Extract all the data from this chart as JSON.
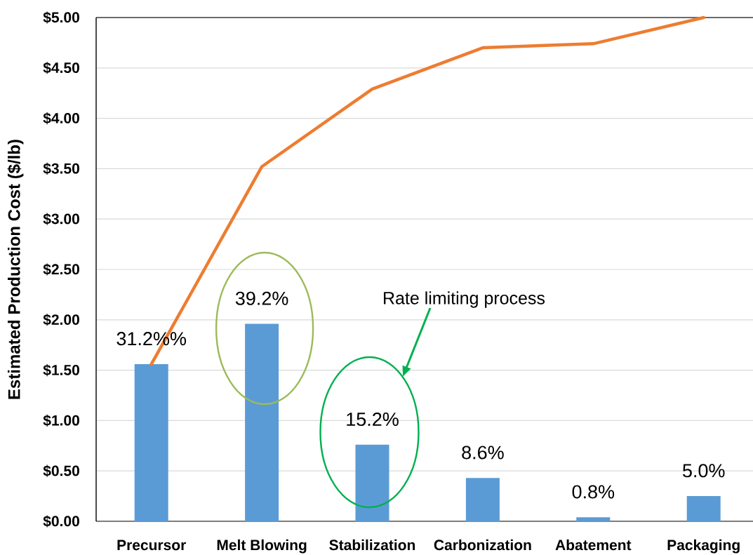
{
  "chart_data": {
    "type": "bar",
    "ylabel": "Estimated Production Cost ($/lb)",
    "categories": [
      "Precursor",
      "Melt Blowing",
      "Stabilization",
      "Carbonization",
      "Abatement",
      "Packaging"
    ],
    "series": [
      {
        "color": "#5b9bd5",
        "values": [
          1.56,
          1.96,
          0.76,
          0.43,
          0.04,
          0.25
        ]
      },
      {
        "type": "line",
        "color": "#ed7d31",
        "values": [
          1.56,
          3.52,
          4.29,
          4.7,
          4.74,
          5.0
        ]
      }
    ],
    "ylim": [
      0,
      5
    ],
    "yticks": [
      {
        "value": 0,
        "label": "$0.00"
      },
      {
        "value": 0.5,
        "label": "$0.50"
      },
      {
        "value": 1,
        "label": "$1.00"
      },
      {
        "value": 1.5,
        "label": "$1.50"
      },
      {
        "value": 2,
        "label": "$2.00"
      },
      {
        "value": 2.5,
        "label": "$2.50"
      },
      {
        "value": 3,
        "label": "$3.00"
      },
      {
        "value": 3.5,
        "label": "$3.50"
      },
      {
        "value": 4,
        "label": "$4.00"
      },
      {
        "value": 4.5,
        "label": "$4.50"
      },
      {
        "value": 5,
        "label": "$5.00"
      }
    ],
    "grid": "y",
    "annotations": [
      {
        "text": "31.2%%",
        "x": "Precursor",
        "y": 1.56
      },
      {
        "text": "39.2%",
        "x": "Melt Blowing",
        "y": 1.96
      },
      {
        "text": "15.2%",
        "x": "Stabilization",
        "y": 0.76
      },
      {
        "text": "8.6%",
        "x": "Carbonization",
        "y": 0.43
      },
      {
        "text": "0.8%",
        "x": "Abatement",
        "y": 0.04
      },
      {
        "text": "5.0%",
        "x": "Packaging",
        "y": 0.25
      },
      "Rate limiting process"
    ]
  }
}
